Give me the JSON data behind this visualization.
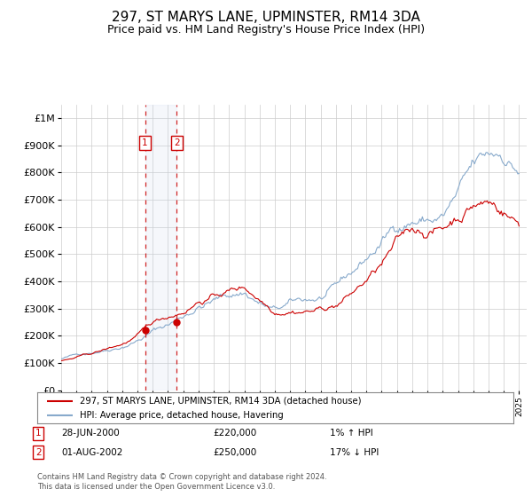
{
  "title": "297, ST MARYS LANE, UPMINSTER, RM14 3DA",
  "subtitle": "Price paid vs. HM Land Registry's House Price Index (HPI)",
  "ylim": [
    0,
    1050000
  ],
  "yticks": [
    0,
    100000,
    200000,
    300000,
    400000,
    500000,
    600000,
    700000,
    800000,
    900000,
    1000000
  ],
  "ytick_labels": [
    "£0",
    "£100K",
    "£200K",
    "£300K",
    "£400K",
    "£500K",
    "£600K",
    "£700K",
    "£800K",
    "£900K",
    "£1M"
  ],
  "background_color": "#ffffff",
  "grid_color": "#cccccc",
  "legend_entry1": "297, ST MARYS LANE, UPMINSTER, RM14 3DA (detached house)",
  "legend_entry2": "HPI: Average price, detached house, Havering",
  "sale1_date": "28-JUN-2000",
  "sale1_price": 220000,
  "sale1_hpi": "1% ↑ HPI",
  "sale1_price_str": "£220,000",
  "sale2_date": "01-AUG-2002",
  "sale2_price": 250000,
  "sale2_hpi": "17% ↓ HPI",
  "sale2_price_str": "£250,000",
  "footnote": "Contains HM Land Registry data © Crown copyright and database right 2024.\nThis data is licensed under the Open Government Licence v3.0.",
  "line_color_red": "#cc0000",
  "line_color_blue": "#88aacc",
  "sale_marker_color": "#cc0000",
  "dashed_color": "#cc0000",
  "title_fontsize": 11,
  "subtitle_fontsize": 9,
  "tick_fontsize": 8,
  "sale1_x": 2000.49,
  "sale2_x": 2002.58
}
